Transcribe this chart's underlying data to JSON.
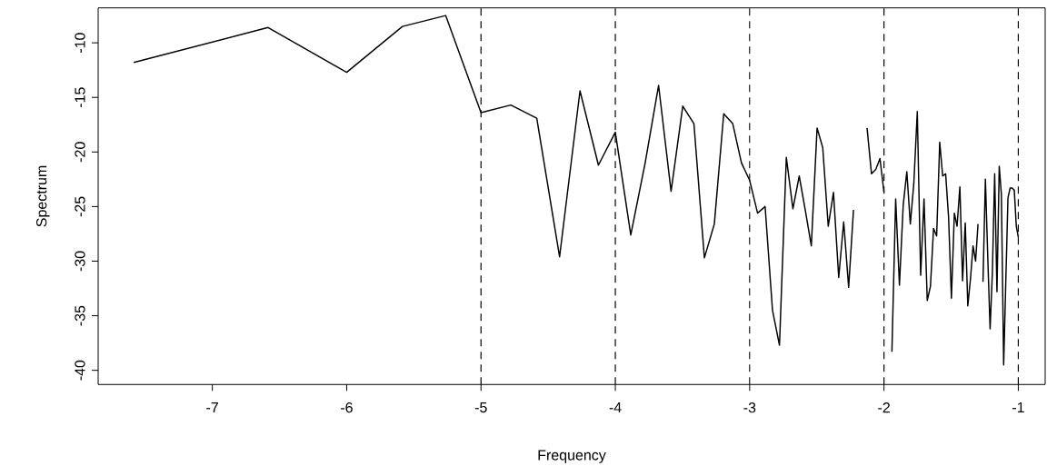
{
  "chart_data": {
    "type": "line",
    "xlabel": "Frequency",
    "ylabel": "Spectrum",
    "xlim": [
      -7.85,
      -0.8
    ],
    "ylim": [
      -41.3,
      -6.8
    ],
    "xticks": [
      -7,
      -6,
      -5,
      -4,
      -3,
      -2,
      -1
    ],
    "yticks": [
      -40,
      -35,
      -30,
      -25,
      -20,
      -15,
      -10
    ],
    "series": [
      {
        "color": "#000000",
        "line_style": "solid",
        "x": [
          -7.585,
          -6.585,
          -6.0,
          -5.585,
          -5.263,
          -5.0,
          -4.778,
          -4.585,
          -4.415,
          -4.263,
          -4.126,
          -4.0,
          -3.885,
          -3.778,
          -3.678,
          -3.585,
          -3.498,
          -3.415,
          -3.337,
          -3.263,
          -3.193,
          -3.126,
          -3.061,
          -3.0,
          -2.941,
          -2.885,
          -2.83,
          -2.778,
          -2.727,
          -2.678,
          -2.631,
          -2.585,
          -2.541,
          -2.498,
          -2.456,
          -2.415,
          -2.376,
          -2.337,
          -2.3,
          -2.263,
          -2.227,
          -2.193,
          -2.159,
          -2.126,
          -2.093,
          -2.061,
          -2.03,
          -2.0,
          -1.97,
          -1.941,
          -1.913,
          -1.885,
          -1.857,
          -1.83,
          -1.804,
          -1.778,
          -1.752,
          -1.727,
          -1.702,
          -1.678,
          -1.654,
          -1.631,
          -1.608,
          -1.585,
          -1.563,
          -1.541,
          -1.519,
          -1.498,
          -1.476,
          -1.456,
          -1.435,
          -1.415,
          -1.395,
          -1.376,
          -1.356,
          -1.337,
          -1.318,
          -1.3,
          -1.281,
          -1.263,
          -1.245,
          -1.227,
          -1.21,
          -1.193,
          -1.176,
          -1.159,
          -1.142,
          -1.126,
          -1.109,
          -1.093,
          -1.077,
          -1.061,
          -1.046,
          -1.03,
          -1.015,
          -1.0
        ],
        "values": [
          -11.8,
          -8.6,
          -12.7,
          -8.5,
          -7.5,
          -16.4,
          -15.7,
          -16.9,
          -29.6,
          -14.4,
          -21.2,
          -18.2,
          -27.6,
          -21.0,
          -13.9,
          -23.6,
          -15.8,
          -17.4,
          -29.7,
          -26.6,
          -16.5,
          -17.4,
          -21.0,
          -22.6,
          -25.6,
          -25.0,
          -34.5,
          -37.7,
          -20.5,
          -25.2,
          -22.2,
          -25.4,
          -28.6,
          -17.8,
          -19.6,
          -26.8,
          -23.7,
          -31.5,
          -26.4,
          -32.4,
          -25.3,
          null,
          null,
          -17.8,
          -22.0,
          -21.6,
          -20.6,
          -23.7,
          null,
          -38.3,
          -24.3,
          -32.2,
          -24.9,
          -21.8,
          -26.6,
          -22.9,
          -16.3,
          -31.3,
          -24.3,
          -33.6,
          -32.3,
          -27.0,
          -27.7,
          -19.1,
          -22.2,
          -22.0,
          -26.0,
          -33.4,
          -25.6,
          -26.8,
          -23.2,
          -31.8,
          -26.5,
          -34.1,
          -31.6,
          -28.6,
          -30.0,
          -26.6,
          null,
          -31.9,
          -22.5,
          -29.8,
          -36.2,
          -31.0,
          -22.0,
          -32.8,
          -21.3,
          -23.9,
          -39.5,
          -31.8,
          -24.2,
          -23.3,
          -23.3,
          -23.5,
          -26.8,
          -27.8
        ]
      }
    ],
    "ref_lines": [
      {
        "axis": "x",
        "value": -5,
        "line_style": "dashed",
        "color": "#000000"
      },
      {
        "axis": "x",
        "value": -4,
        "line_style": "dashed",
        "color": "#000000"
      },
      {
        "axis": "x",
        "value": -3,
        "line_style": "dashed",
        "color": "#000000"
      },
      {
        "axis": "x",
        "value": -2,
        "line_style": "dashed",
        "color": "#000000"
      },
      {
        "axis": "x",
        "value": -1,
        "line_style": "dashed",
        "color": "#000000"
      }
    ]
  }
}
